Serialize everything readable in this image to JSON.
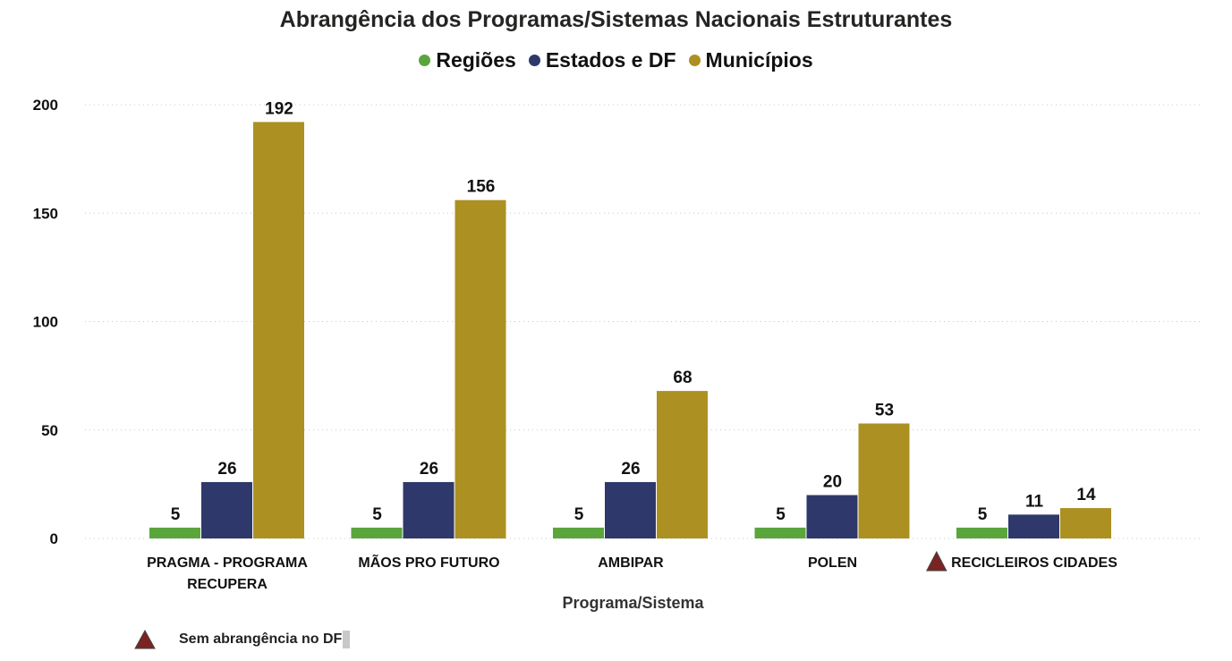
{
  "chart_data": {
    "type": "bar",
    "title": "Abrangência dos Programas/Sistemas Nacionais Estruturantes",
    "xlabel": "Programa/Sistema",
    "ylabel": "",
    "ylim": [
      0,
      200
    ],
    "yticks": [
      "0",
      "50",
      "100",
      "150",
      "200"
    ],
    "grid": "horizontal dotted",
    "legend_position": "top-center",
    "categories": [
      "PRAGMA - PROGRAMA RECUPERA",
      "MÃOS PRO FUTURO",
      "AMBIPAR",
      "POLEN",
      "RECICLEIROS CIDADES"
    ],
    "category_markers": [
      false,
      false,
      false,
      false,
      true
    ],
    "series": [
      {
        "name": "Regiões",
        "color": "#5aa63c",
        "values": [
          5,
          5,
          5,
          5,
          5
        ]
      },
      {
        "name": "Estados e DF",
        "color": "#2e386b",
        "values": [
          26,
          26,
          26,
          20,
          11
        ]
      },
      {
        "name": "Municípios",
        "color": "#ad9022",
        "values": [
          192,
          156,
          68,
          53,
          14
        ]
      }
    ]
  },
  "note": {
    "marker_icon": "warning-triangle-icon",
    "marker_color": "#7a2323",
    "text": "Sem abrangência no DF"
  }
}
